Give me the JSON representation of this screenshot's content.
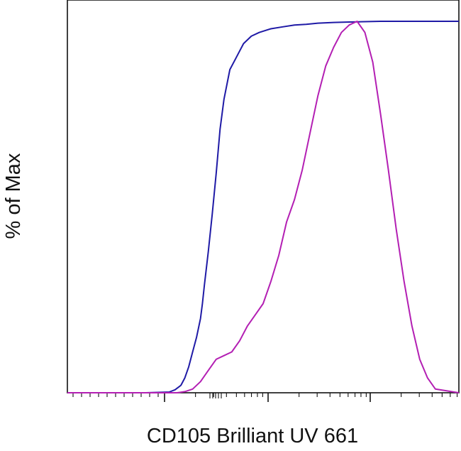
{
  "chart_data": {
    "type": "line",
    "title": "",
    "xlabel": "CD105 Brilliant UV 661",
    "ylabel": "% of Max",
    "x_scale": "log (biexponential)",
    "x_tick_labels": [],
    "y_tick_labels": [],
    "ylim": [
      0,
      100
    ],
    "grid": false,
    "legend": "none",
    "series": [
      {
        "color": "#1f1aa6",
        "x_position": [
          0,
          0.2,
          0.26,
          0.275,
          0.29,
          0.3,
          0.31,
          0.32,
          0.33,
          0.34,
          0.345,
          0.35,
          0.36,
          0.37,
          0.38,
          0.39,
          0.4,
          0.415,
          0.43,
          0.44,
          0.45,
          0.47,
          0.49,
          0.52,
          0.55,
          0.58,
          0.61,
          0.64,
          0.68,
          0.72,
          0.8,
          1.0
        ],
        "values": [
          0,
          0,
          0.2,
          0.8,
          2,
          4,
          7,
          11,
          15,
          20,
          24,
          29,
          38,
          48,
          59,
          71,
          79,
          87,
          90,
          92,
          94,
          96,
          97,
          98,
          98.5,
          99,
          99.2,
          99.5,
          99.7,
          99.8,
          100,
          100
        ]
      },
      {
        "color": "#b31fb3",
        "x_position": [
          0,
          0.28,
          0.3,
          0.32,
          0.34,
          0.36,
          0.38,
          0.4,
          0.42,
          0.44,
          0.46,
          0.48,
          0.5,
          0.52,
          0.54,
          0.56,
          0.58,
          0.6,
          0.62,
          0.64,
          0.66,
          0.68,
          0.7,
          0.72,
          0.74,
          0.76,
          0.78,
          0.8,
          0.82,
          0.84,
          0.86,
          0.88,
          0.9,
          0.92,
          0.94,
          1.0
        ],
        "values": [
          0,
          0,
          0.3,
          1,
          3,
          6,
          9,
          10,
          11,
          14,
          18,
          21,
          24,
          30,
          37,
          46,
          52,
          60,
          70,
          80,
          88,
          93,
          97,
          99,
          100,
          97,
          89,
          75,
          60,
          44,
          30,
          18,
          9,
          4,
          1,
          0
        ]
      }
    ]
  }
}
